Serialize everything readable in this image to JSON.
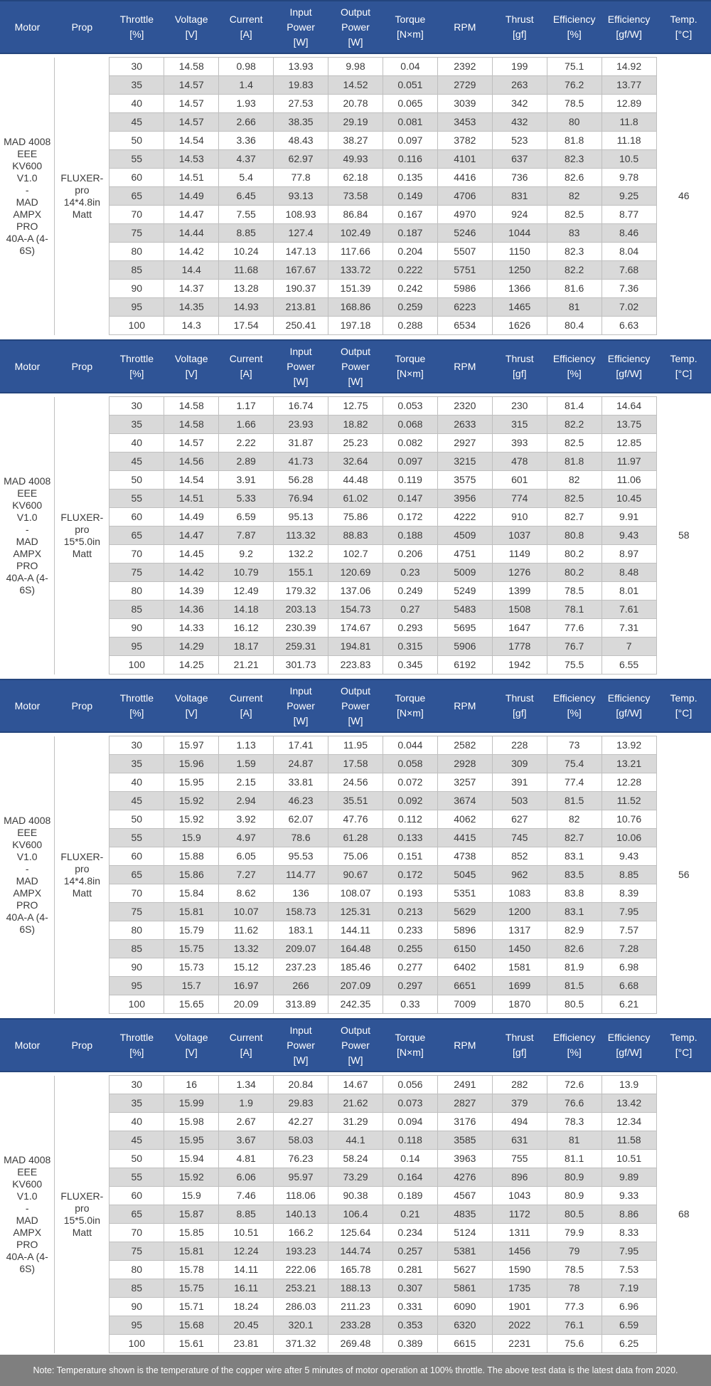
{
  "columns": [
    "Motor",
    "Prop",
    "Throttle\n[%]",
    "Voltage\n[V]",
    "Current\n[A]",
    "Input\nPower\n[W]",
    "Output\nPower\n[W]",
    "Torque\n[N×m]",
    "RPM",
    "Thrust\n[gf]",
    "Efficiency\n[%]",
    "Efficiency\n[gf/W]",
    "Temp.\n[°C]"
  ],
  "sections": [
    {
      "motor": "MAD 4008\nEEE KV600\nV1.0\n-\nMAD\nAMPX PRO\n40A-A (4-\n6S)",
      "prop": "FLUXER-\npro\n14*4.8in\nMatt",
      "temp": "46",
      "rows": [
        [
          "30",
          "14.58",
          "0.98",
          "13.93",
          "9.98",
          "0.04",
          "2392",
          "199",
          "75.1",
          "14.92"
        ],
        [
          "35",
          "14.57",
          "1.4",
          "19.83",
          "14.52",
          "0.051",
          "2729",
          "263",
          "76.2",
          "13.77"
        ],
        [
          "40",
          "14.57",
          "1.93",
          "27.53",
          "20.78",
          "0.065",
          "3039",
          "342",
          "78.5",
          "12.89"
        ],
        [
          "45",
          "14.57",
          "2.66",
          "38.35",
          "29.19",
          "0.081",
          "3453",
          "432",
          "80",
          "11.8"
        ],
        [
          "50",
          "14.54",
          "3.36",
          "48.43",
          "38.27",
          "0.097",
          "3782",
          "523",
          "81.8",
          "11.18"
        ],
        [
          "55",
          "14.53",
          "4.37",
          "62.97",
          "49.93",
          "0.116",
          "4101",
          "637",
          "82.3",
          "10.5"
        ],
        [
          "60",
          "14.51",
          "5.4",
          "77.8",
          "62.18",
          "0.135",
          "4416",
          "736",
          "82.6",
          "9.78"
        ],
        [
          "65",
          "14.49",
          "6.45",
          "93.13",
          "73.58",
          "0.149",
          "4706",
          "831",
          "82",
          "9.25"
        ],
        [
          "70",
          "14.47",
          "7.55",
          "108.93",
          "86.84",
          "0.167",
          "4970",
          "924",
          "82.5",
          "8.77"
        ],
        [
          "75",
          "14.44",
          "8.85",
          "127.4",
          "102.49",
          "0.187",
          "5246",
          "1044",
          "83",
          "8.46"
        ],
        [
          "80",
          "14.42",
          "10.24",
          "147.13",
          "117.66",
          "0.204",
          "5507",
          "1150",
          "82.3",
          "8.04"
        ],
        [
          "85",
          "14.4",
          "11.68",
          "167.67",
          "133.72",
          "0.222",
          "5751",
          "1250",
          "82.2",
          "7.68"
        ],
        [
          "90",
          "14.37",
          "13.28",
          "190.37",
          "151.39",
          "0.242",
          "5986",
          "1366",
          "81.6",
          "7.36"
        ],
        [
          "95",
          "14.35",
          "14.93",
          "213.81",
          "168.86",
          "0.259",
          "6223",
          "1465",
          "81",
          "7.02"
        ],
        [
          "100",
          "14.3",
          "17.54",
          "250.41",
          "197.18",
          "0.288",
          "6534",
          "1626",
          "80.4",
          "6.63"
        ]
      ]
    },
    {
      "motor": "MAD 4008\nEEE KV600\nV1.0\n-\nMAD\nAMPX PRO\n40A-A (4-\n6S)",
      "prop": "FLUXER-\npro\n15*5.0in\nMatt",
      "temp": "58",
      "rows": [
        [
          "30",
          "14.58",
          "1.17",
          "16.74",
          "12.75",
          "0.053",
          "2320",
          "230",
          "81.4",
          "14.64"
        ],
        [
          "35",
          "14.58",
          "1.66",
          "23.93",
          "18.82",
          "0.068",
          "2633",
          "315",
          "82.2",
          "13.75"
        ],
        [
          "40",
          "14.57",
          "2.22",
          "31.87",
          "25.23",
          "0.082",
          "2927",
          "393",
          "82.5",
          "12.85"
        ],
        [
          "45",
          "14.56",
          "2.89",
          "41.73",
          "32.64",
          "0.097",
          "3215",
          "478",
          "81.8",
          "11.97"
        ],
        [
          "50",
          "14.54",
          "3.91",
          "56.28",
          "44.48",
          "0.119",
          "3575",
          "601",
          "82",
          "11.06"
        ],
        [
          "55",
          "14.51",
          "5.33",
          "76.94",
          "61.02",
          "0.147",
          "3956",
          "774",
          "82.5",
          "10.45"
        ],
        [
          "60",
          "14.49",
          "6.59",
          "95.13",
          "75.86",
          "0.172",
          "4222",
          "910",
          "82.7",
          "9.91"
        ],
        [
          "65",
          "14.47",
          "7.87",
          "113.32",
          "88.83",
          "0.188",
          "4509",
          "1037",
          "80.8",
          "9.43"
        ],
        [
          "70",
          "14.45",
          "9.2",
          "132.2",
          "102.7",
          "0.206",
          "4751",
          "1149",
          "80.2",
          "8.97"
        ],
        [
          "75",
          "14.42",
          "10.79",
          "155.1",
          "120.69",
          "0.23",
          "5009",
          "1276",
          "80.2",
          "8.48"
        ],
        [
          "80",
          "14.39",
          "12.49",
          "179.32",
          "137.06",
          "0.249",
          "5249",
          "1399",
          "78.5",
          "8.01"
        ],
        [
          "85",
          "14.36",
          "14.18",
          "203.13",
          "154.73",
          "0.27",
          "5483",
          "1508",
          "78.1",
          "7.61"
        ],
        [
          "90",
          "14.33",
          "16.12",
          "230.39",
          "174.67",
          "0.293",
          "5695",
          "1647",
          "77.6",
          "7.31"
        ],
        [
          "95",
          "14.29",
          "18.17",
          "259.31",
          "194.81",
          "0.315",
          "5906",
          "1778",
          "76.7",
          "7"
        ],
        [
          "100",
          "14.25",
          "21.21",
          "301.73",
          "223.83",
          "0.345",
          "6192",
          "1942",
          "75.5",
          "6.55"
        ]
      ]
    },
    {
      "motor": "MAD 4008\nEEE KV600\nV1.0\n-\nMAD\nAMPX PRO\n40A-A (4-\n6S)",
      "prop": "FLUXER-\npro\n14*4.8in\nMatt",
      "temp": "56",
      "rows": [
        [
          "30",
          "15.97",
          "1.13",
          "17.41",
          "11.95",
          "0.044",
          "2582",
          "228",
          "73",
          "13.92"
        ],
        [
          "35",
          "15.96",
          "1.59",
          "24.87",
          "17.58",
          "0.058",
          "2928",
          "309",
          "75.4",
          "13.21"
        ],
        [
          "40",
          "15.95",
          "2.15",
          "33.81",
          "24.56",
          "0.072",
          "3257",
          "391",
          "77.4",
          "12.28"
        ],
        [
          "45",
          "15.92",
          "2.94",
          "46.23",
          "35.51",
          "0.092",
          "3674",
          "503",
          "81.5",
          "11.52"
        ],
        [
          "50",
          "15.92",
          "3.92",
          "62.07",
          "47.76",
          "0.112",
          "4062",
          "627",
          "82",
          "10.76"
        ],
        [
          "55",
          "15.9",
          "4.97",
          "78.6",
          "61.28",
          "0.133",
          "4415",
          "745",
          "82.7",
          "10.06"
        ],
        [
          "60",
          "15.88",
          "6.05",
          "95.53",
          "75.06",
          "0.151",
          "4738",
          "852",
          "83.1",
          "9.43"
        ],
        [
          "65",
          "15.86",
          "7.27",
          "114.77",
          "90.67",
          "0.172",
          "5045",
          "962",
          "83.5",
          "8.85"
        ],
        [
          "70",
          "15.84",
          "8.62",
          "136",
          "108.07",
          "0.193",
          "5351",
          "1083",
          "83.8",
          "8.39"
        ],
        [
          "75",
          "15.81",
          "10.07",
          "158.73",
          "125.31",
          "0.213",
          "5629",
          "1200",
          "83.1",
          "7.95"
        ],
        [
          "80",
          "15.79",
          "11.62",
          "183.1",
          "144.11",
          "0.233",
          "5896",
          "1317",
          "82.9",
          "7.57"
        ],
        [
          "85",
          "15.75",
          "13.32",
          "209.07",
          "164.48",
          "0.255",
          "6150",
          "1450",
          "82.6",
          "7.28"
        ],
        [
          "90",
          "15.73",
          "15.12",
          "237.23",
          "185.46",
          "0.277",
          "6402",
          "1581",
          "81.9",
          "6.98"
        ],
        [
          "95",
          "15.7",
          "16.97",
          "266",
          "207.09",
          "0.297",
          "6651",
          "1699",
          "81.5",
          "6.68"
        ],
        [
          "100",
          "15.65",
          "20.09",
          "313.89",
          "242.35",
          "0.33",
          "7009",
          "1870",
          "80.5",
          "6.21"
        ]
      ]
    },
    {
      "motor": "MAD 4008\nEEE KV600\nV1.0\n-\nMAD\nAMPX PRO\n40A-A (4-\n6S)",
      "prop": "FLUXER-\npro\n15*5.0in\nMatt",
      "temp": "68",
      "rows": [
        [
          "30",
          "16",
          "1.34",
          "20.84",
          "14.67",
          "0.056",
          "2491",
          "282",
          "72.6",
          "13.9"
        ],
        [
          "35",
          "15.99",
          "1.9",
          "29.83",
          "21.62",
          "0.073",
          "2827",
          "379",
          "76.6",
          "13.42"
        ],
        [
          "40",
          "15.98",
          "2.67",
          "42.27",
          "31.29",
          "0.094",
          "3176",
          "494",
          "78.3",
          "12.34"
        ],
        [
          "45",
          "15.95",
          "3.67",
          "58.03",
          "44.1",
          "0.118",
          "3585",
          "631",
          "81",
          "11.58"
        ],
        [
          "50",
          "15.94",
          "4.81",
          "76.23",
          "58.24",
          "0.14",
          "3963",
          "755",
          "81.1",
          "10.51"
        ],
        [
          "55",
          "15.92",
          "6.06",
          "95.97",
          "73.29",
          "0.164",
          "4276",
          "896",
          "80.9",
          "9.89"
        ],
        [
          "60",
          "15.9",
          "7.46",
          "118.06",
          "90.38",
          "0.189",
          "4567",
          "1043",
          "80.9",
          "9.33"
        ],
        [
          "65",
          "15.87",
          "8.85",
          "140.13",
          "106.4",
          "0.21",
          "4835",
          "1172",
          "80.5",
          "8.86"
        ],
        [
          "70",
          "15.85",
          "10.51",
          "166.2",
          "125.64",
          "0.234",
          "5124",
          "1311",
          "79.9",
          "8.33"
        ],
        [
          "75",
          "15.81",
          "12.24",
          "193.23",
          "144.74",
          "0.257",
          "5381",
          "1456",
          "79",
          "7.95"
        ],
        [
          "80",
          "15.78",
          "14.11",
          "222.06",
          "165.78",
          "0.281",
          "5627",
          "1590",
          "78.5",
          "7.53"
        ],
        [
          "85",
          "15.75",
          "16.11",
          "253.21",
          "188.13",
          "0.307",
          "5861",
          "1735",
          "78",
          "7.19"
        ],
        [
          "90",
          "15.71",
          "18.24",
          "286.03",
          "211.23",
          "0.331",
          "6090",
          "1901",
          "77.3",
          "6.96"
        ],
        [
          "95",
          "15.68",
          "20.45",
          "320.1",
          "233.28",
          "0.353",
          "6320",
          "2022",
          "76.1",
          "6.59"
        ],
        [
          "100",
          "15.61",
          "23.81",
          "371.32",
          "269.48",
          "0.389",
          "6615",
          "2231",
          "75.6",
          "6.25"
        ]
      ]
    }
  ],
  "note": "Note: Temperature shown is the temperature of the copper wire after 5 minutes of motor operation at 100% throttle. The above test data is the latest data from 2020.",
  "colors": {
    "header_bg": "#2F5496",
    "header_edge": "#24457D",
    "stripe": "#D9D9D9",
    "border": "#BFBFBF",
    "note_bg": "#7F7F7F",
    "text": "#3A3A3A"
  }
}
